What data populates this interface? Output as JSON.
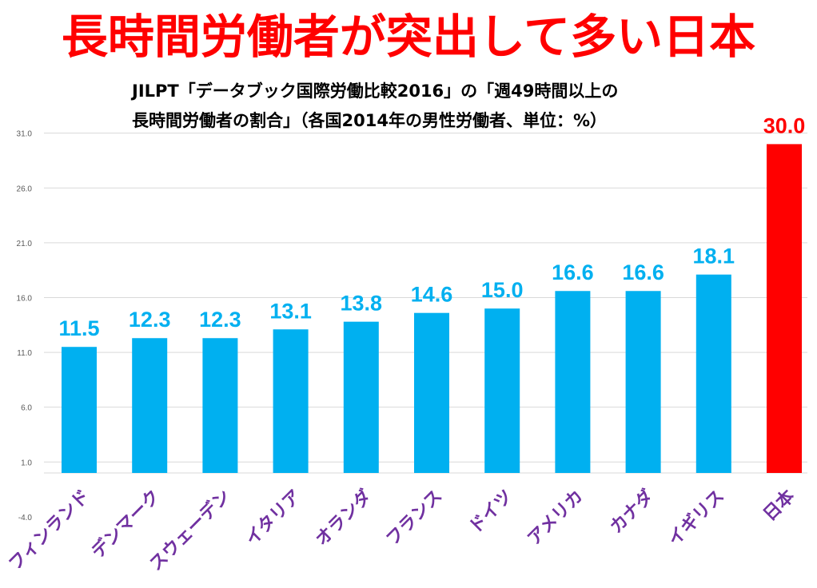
{
  "chart_data": {
    "type": "bar",
    "title": "長時間労働者が突出して多い日本",
    "subtitle": [
      "JILPT「データブック国際労働比較2016」の「週49時間以上の",
      "長時間労働者の割合」（各国2014年の男性労働者、単位：%）"
    ],
    "categories": [
      "フィンランド",
      "デンマーク",
      "スウェーデン",
      "イタリア",
      "オランダ",
      "フランス",
      "ドイツ",
      "アメリカ",
      "カナダ",
      "イギリス",
      "日本"
    ],
    "values": [
      11.5,
      12.3,
      12.3,
      13.1,
      13.8,
      14.6,
      15.0,
      16.6,
      16.6,
      18.1,
      30.0
    ],
    "data_labels": [
      "11.5",
      "12.3",
      "12.3",
      "13.1",
      "13.8",
      "14.6",
      "15.0",
      "16.6",
      "16.6",
      "18.1",
      "30.0"
    ],
    "yticks": [
      "31.0",
      "26.0",
      "21.0",
      "16.0",
      "11.0",
      "6.0",
      "1.0",
      "-4.0"
    ],
    "ytick_values": [
      31,
      26,
      21,
      16,
      11,
      6,
      1,
      -4
    ],
    "ylim": [
      -4,
      31
    ],
    "grid": true,
    "colors": {
      "bar": "#00b0f0",
      "highlight_bar": "#ff0000",
      "title": "#ff0000",
      "category_label": "#7030a0",
      "grid": "#d9d9d9"
    },
    "highlight_category": "日本"
  }
}
